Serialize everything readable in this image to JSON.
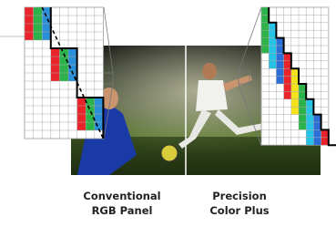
{
  "labels": [
    {
      "lines": [
        "Conventional",
        "RGB Panel"
      ]
    },
    {
      "lines": [
        "Precision",
        "Color Plus"
      ]
    }
  ]
}
